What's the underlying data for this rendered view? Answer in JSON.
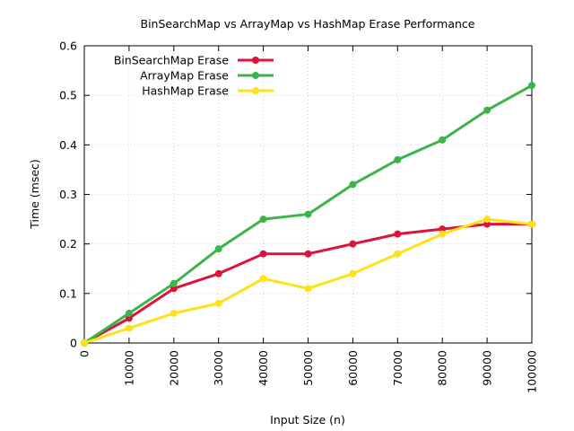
{
  "chart_data": {
    "type": "line",
    "title": "BinSearchMap vs ArrayMap vs HashMap Erase Performance",
    "xlabel": "Input Size (n)",
    "ylabel": "Time (msec)",
    "x": [
      0,
      10000,
      20000,
      30000,
      40000,
      50000,
      60000,
      70000,
      80000,
      90000,
      100000
    ],
    "x_tick_labels": [
      "0",
      "10000",
      "20000",
      "30000",
      "40000",
      "50000",
      "60000",
      "70000",
      "80000",
      "90000",
      "100000"
    ],
    "y_tick_labels": [
      "0",
      "0.1",
      "0.2",
      "0.3",
      "0.4",
      "0.5",
      "0.6"
    ],
    "y_ticks": [
      0,
      0.1,
      0.2,
      0.3,
      0.4,
      0.5,
      0.6
    ],
    "xlim": [
      0,
      100000
    ],
    "ylim": [
      0,
      0.6
    ],
    "grid": true,
    "legend_position": "top-left",
    "series": [
      {
        "name": "BinSearchMap Erase",
        "color": "#dc143c",
        "values": [
          0,
          0.05,
          0.11,
          0.14,
          0.18,
          0.18,
          0.2,
          0.22,
          0.23,
          0.24,
          0.24
        ]
      },
      {
        "name": "ArrayMap Erase",
        "color": "#3cb44b",
        "values": [
          0,
          0.06,
          0.12,
          0.19,
          0.25,
          0.26,
          0.32,
          0.37,
          0.41,
          0.47,
          0.52
        ]
      },
      {
        "name": "HashMap Erase",
        "color": "#ffe119",
        "values": [
          0,
          0.03,
          0.06,
          0.08,
          0.13,
          0.11,
          0.14,
          0.18,
          0.22,
          0.25,
          0.24
        ]
      }
    ]
  }
}
